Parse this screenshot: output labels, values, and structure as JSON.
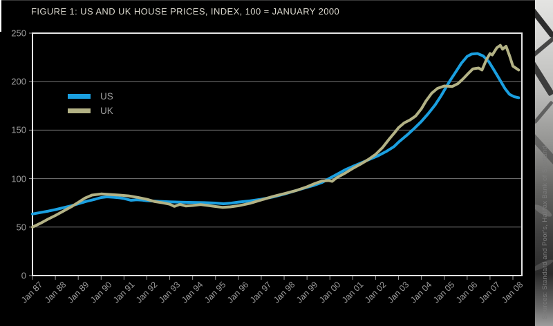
{
  "title": "FIGURE 1: US AND UK HOUSE PRICES, INDEX, 100 = JANUARY 2000",
  "source_note": "Sources: Standard and Poor's, Halifax Bank of Scotland",
  "colors": {
    "us": "#1a9fe0",
    "uk": "#b3b285",
    "background": "#000000",
    "plot_border": "#e6e6e6",
    "grid": "#7a7a7a",
    "tick": "#9c9c9c",
    "axis_text": "#9c9c9c",
    "title_text": "#d9d6cc"
  },
  "legend": [
    {
      "label": "US",
      "series": "us"
    },
    {
      "label": "UK",
      "series": "uk"
    }
  ],
  "chart_data": {
    "type": "line",
    "title": "FIGURE 1: US AND UK HOUSE PRICES, INDEX, 100 = JANUARY 2000",
    "xlabel": "",
    "ylabel": "",
    "ylim": [
      0,
      250
    ],
    "xlim_years": [
      1987,
      2008
    ],
    "y_ticks": [
      250,
      200,
      150,
      100,
      50,
      0
    ],
    "x_tick_labels": [
      "Jan 87",
      "Jan 88",
      "Jan 89",
      "Jan 90",
      "Jan 91",
      "Jan 92",
      "Jan 93",
      "Jan 94",
      "Jan 95",
      "Jan 96",
      "Jan 97",
      "Jan 98",
      "Jan 99",
      "Jan 00",
      "Jan 01",
      "Jan 02",
      "Jan 03",
      "Jan 04",
      "Jan 05",
      "Jan 06",
      "Jan 07",
      "Jan 08"
    ],
    "grid": "horizontal",
    "legend_position": "upper-left-inside",
    "series": [
      {
        "name": "US",
        "color": "#1a9fe0",
        "points": [
          [
            1987.0,
            63.5
          ],
          [
            1987.35,
            65
          ],
          [
            1987.7,
            66.5
          ],
          [
            1988.0,
            68
          ],
          [
            1988.35,
            70
          ],
          [
            1988.7,
            72
          ],
          [
            1989.0,
            74
          ],
          [
            1989.35,
            76.5
          ],
          [
            1989.7,
            78.5
          ],
          [
            1990.0,
            80.5
          ],
          [
            1990.25,
            81.2
          ],
          [
            1990.55,
            80.8
          ],
          [
            1990.8,
            80.2
          ],
          [
            1991.0,
            79.5
          ],
          [
            1991.3,
            77.6
          ],
          [
            1991.55,
            78.2
          ],
          [
            1991.8,
            77.8
          ],
          [
            1992.0,
            77.2
          ],
          [
            1992.5,
            76.6
          ],
          [
            1993.0,
            76.1
          ],
          [
            1993.5,
            75.7
          ],
          [
            1994.0,
            75.4
          ],
          [
            1994.5,
            75.2
          ],
          [
            1995.0,
            74.8
          ],
          [
            1995.35,
            74.1
          ],
          [
            1995.7,
            74.8
          ],
          [
            1996.0,
            75.8
          ],
          [
            1996.5,
            77
          ],
          [
            1997.0,
            78.7
          ],
          [
            1997.5,
            81
          ],
          [
            1998.0,
            84
          ],
          [
            1998.5,
            87.5
          ],
          [
            1999.0,
            91
          ],
          [
            1999.3,
            93
          ],
          [
            1999.65,
            96
          ],
          [
            2000.0,
            100.5
          ],
          [
            2000.35,
            105
          ],
          [
            2000.7,
            109.5
          ],
          [
            2001.0,
            112.5
          ],
          [
            2001.35,
            116
          ],
          [
            2001.7,
            119.5
          ],
          [
            2001.9,
            121.5
          ],
          [
            2002.1,
            123.5
          ],
          [
            2002.5,
            128.5
          ],
          [
            2002.8,
            133
          ],
          [
            2003.0,
            137.5
          ],
          [
            2003.4,
            145.5
          ],
          [
            2003.7,
            152
          ],
          [
            2004.0,
            159
          ],
          [
            2004.3,
            167
          ],
          [
            2004.6,
            176
          ],
          [
            2004.85,
            185
          ],
          [
            2005.0,
            191
          ],
          [
            2005.25,
            201
          ],
          [
            2005.5,
            210
          ],
          [
            2005.75,
            219
          ],
          [
            2006.0,
            226
          ],
          [
            2006.2,
            228.5
          ],
          [
            2006.45,
            229
          ],
          [
            2006.7,
            226.5
          ],
          [
            2006.95,
            220.5
          ],
          [
            2007.2,
            211
          ],
          [
            2007.45,
            201
          ],
          [
            2007.65,
            193
          ],
          [
            2007.85,
            187
          ],
          [
            2008.05,
            184.5
          ],
          [
            2008.25,
            183.5
          ]
        ]
      },
      {
        "name": "UK",
        "color": "#b3b285",
        "points": [
          [
            1987.0,
            50
          ],
          [
            1987.35,
            54
          ],
          [
            1987.7,
            58.5
          ],
          [
            1988.0,
            62
          ],
          [
            1988.35,
            66.5
          ],
          [
            1988.7,
            71
          ],
          [
            1989.0,
            75.5
          ],
          [
            1989.3,
            80
          ],
          [
            1989.6,
            83
          ],
          [
            1990.0,
            84.2
          ],
          [
            1990.4,
            83.6
          ],
          [
            1990.8,
            83
          ],
          [
            1991.2,
            82.2
          ],
          [
            1991.6,
            80.6
          ],
          [
            1992.0,
            78.6
          ],
          [
            1992.35,
            76.3
          ],
          [
            1992.7,
            75
          ],
          [
            1993.0,
            73.6
          ],
          [
            1993.2,
            71.4
          ],
          [
            1993.45,
            73.4
          ],
          [
            1993.7,
            71.8
          ],
          [
            1994.0,
            72.3
          ],
          [
            1994.35,
            73.2
          ],
          [
            1994.7,
            72.2
          ],
          [
            1995.0,
            71.2
          ],
          [
            1995.3,
            70.4
          ],
          [
            1995.65,
            70.9
          ],
          [
            1996.0,
            72
          ],
          [
            1996.5,
            74.5
          ],
          [
            1997.0,
            78
          ],
          [
            1997.5,
            81.5
          ],
          [
            1998.0,
            84.5
          ],
          [
            1998.5,
            87.5
          ],
          [
            1999.0,
            91.5
          ],
          [
            1999.35,
            95
          ],
          [
            1999.65,
            97.5
          ],
          [
            1999.95,
            98
          ],
          [
            2000.1,
            97.2
          ],
          [
            2000.3,
            101
          ],
          [
            2000.65,
            105.5
          ],
          [
            2001.0,
            110.5
          ],
          [
            2001.35,
            115
          ],
          [
            2001.7,
            120
          ],
          [
            2002.0,
            125
          ],
          [
            2002.3,
            132
          ],
          [
            2002.6,
            141
          ],
          [
            2002.85,
            148
          ],
          [
            2003.0,
            152.5
          ],
          [
            2003.25,
            157.5
          ],
          [
            2003.5,
            160.5
          ],
          [
            2003.75,
            164.5
          ],
          [
            2004.0,
            172
          ],
          [
            2004.2,
            180
          ],
          [
            2004.45,
            188
          ],
          [
            2004.7,
            193
          ],
          [
            2005.0,
            195.5
          ],
          [
            2005.35,
            195
          ],
          [
            2005.6,
            198
          ],
          [
            2005.85,
            203.5
          ],
          [
            2006.05,
            208.5
          ],
          [
            2006.25,
            213.2
          ],
          [
            2006.5,
            214
          ],
          [
            2006.65,
            212
          ],
          [
            2006.85,
            223
          ],
          [
            2007.0,
            229
          ],
          [
            2007.1,
            227.5
          ],
          [
            2007.3,
            235
          ],
          [
            2007.45,
            237.5
          ],
          [
            2007.55,
            233.5
          ],
          [
            2007.7,
            236.5
          ],
          [
            2007.85,
            227
          ],
          [
            2008.0,
            216
          ],
          [
            2008.25,
            212
          ]
        ]
      }
    ]
  }
}
